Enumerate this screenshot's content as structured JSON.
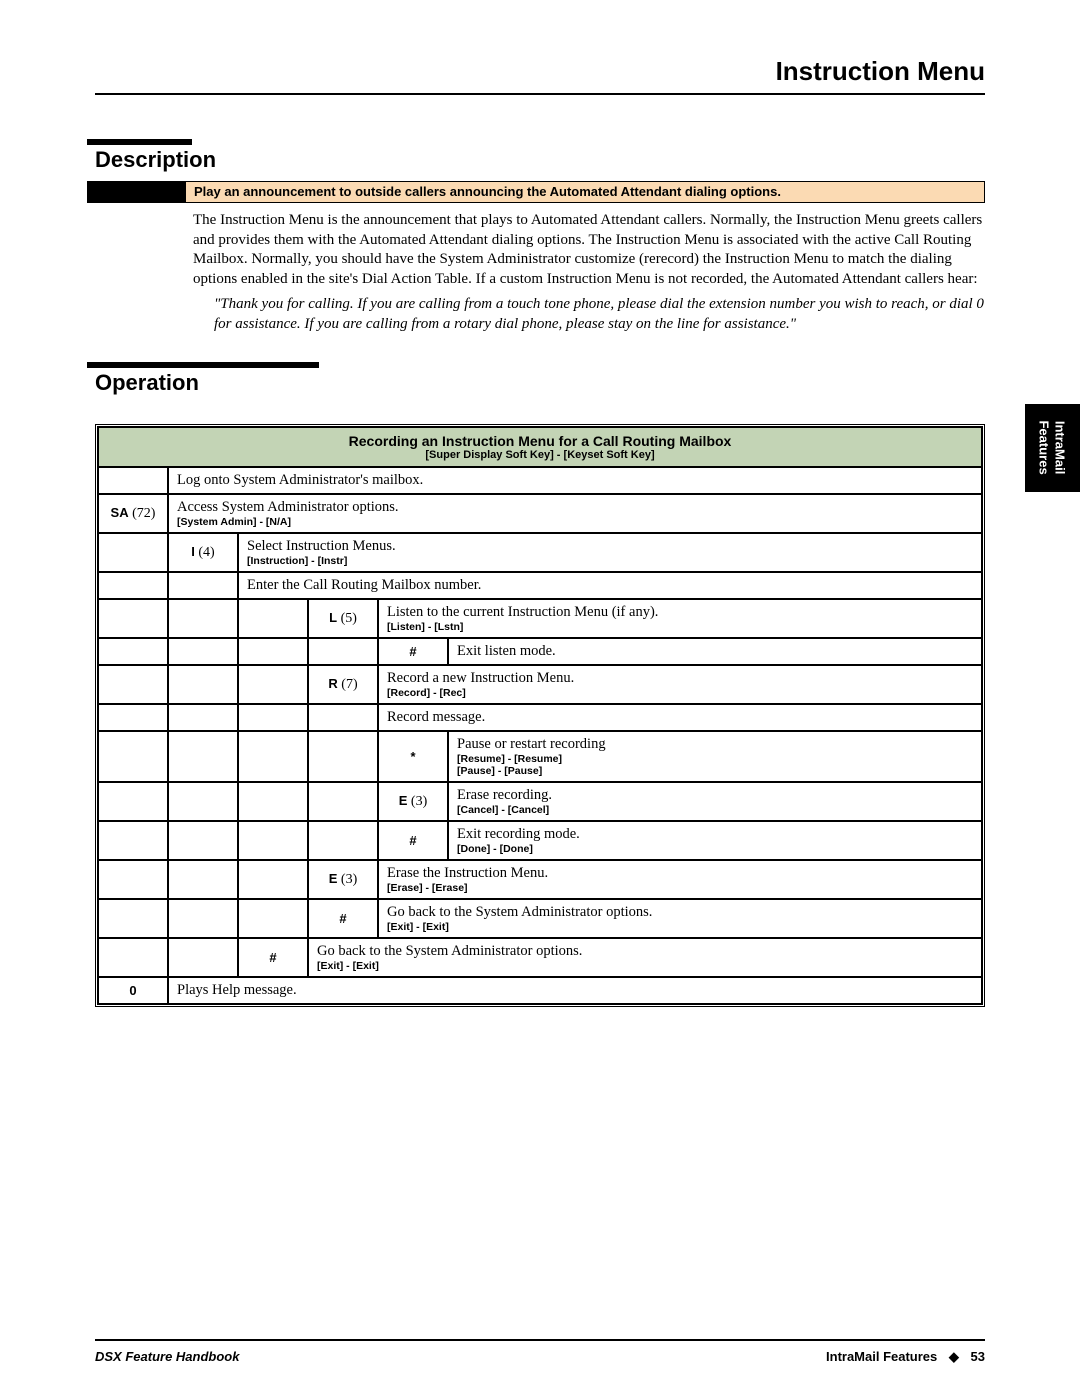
{
  "page": {
    "title": "Instruction Menu",
    "footer_left": "DSX Feature Handbook",
    "footer_section": "IntraMail Features",
    "footer_diamond": "◆",
    "footer_page": "53",
    "sidetab_line1": "IntraMail",
    "sidetab_line2": "Features"
  },
  "colors": {
    "summary_bg": "#fbdab3",
    "table_header_bg": "#c3d4b5",
    "rule": "#000000"
  },
  "description": {
    "heading": "Description",
    "summary": "Play an announcement to outside callers announcing the Automated Attendant dialing options.",
    "body": "The Instruction Menu is the announcement that plays to Automated Attendant callers. Normally, the Instruction Menu greets callers and provides them with the Automated Attendant dialing options. The Instruction Menu is associated with the active Call Routing Mailbox. Normally, you should have the System Administrator customize (rerecord) the Instruction Menu to match the dialing options enabled in the site's Dial Action Table. If a custom Instruction Menu is not recorded, the Automated Attendant callers hear:",
    "quote": "\"Thank you for calling. If you are calling from a touch tone phone, please dial the extension number you wish to reach, or dial 0 for assistance. If you are calling from a rotary dial phone, please stay on the line for assistance.\""
  },
  "operation": {
    "heading": "Operation",
    "table": {
      "title": "Recording an Instruction Menu for a Call Routing Mailbox",
      "subtitle": "[Super Display Soft Key] - [Keyset Soft Key]",
      "rows": [
        {
          "c": [
            ""
          ],
          "desc": "Log onto System Administrator's mailbox.",
          "span": 6
        },
        {
          "c": [
            "SA (72)"
          ],
          "desc": "Access System Administrator options.",
          "soft": "[System Admin] - [N/A]",
          "span": 5
        },
        {
          "c": [
            "",
            "I (4)"
          ],
          "desc": "Select Instruction Menus.",
          "soft": "[Instruction] - [Instr]",
          "span": 4
        },
        {
          "c": [
            "",
            ""
          ],
          "desc": "Enter the Call Routing Mailbox number.",
          "span": 4
        },
        {
          "c": [
            "",
            "",
            "",
            "L (5)"
          ],
          "desc": "Listen to the current Instruction Menu (if any).",
          "soft": "[Listen] - [Lstn]",
          "span": 2
        },
        {
          "c": [
            "",
            "",
            "",
            "",
            "#"
          ],
          "desc": "Exit listen mode.",
          "span": 1
        },
        {
          "c": [
            "",
            "",
            "",
            "R (7)"
          ],
          "desc": "Record a new Instruction Menu.",
          "soft": "[Record] - [Rec]",
          "span": 2
        },
        {
          "c": [
            "",
            "",
            "",
            ""
          ],
          "desc": "Record message.",
          "span": 2
        },
        {
          "c": [
            "",
            "",
            "",
            "",
            "*"
          ],
          "desc": "Pause or restart recording",
          "soft": "[Resume] - [Resume]\n[Pause] - [Pause]",
          "span": 1
        },
        {
          "c": [
            "",
            "",
            "",
            "",
            "E (3)"
          ],
          "desc": "Erase recording.",
          "soft": "[Cancel] - [Cancel]",
          "span": 1
        },
        {
          "c": [
            "",
            "",
            "",
            "",
            "#"
          ],
          "desc": "Exit recording mode.",
          "soft": "[Done] - [Done]",
          "span": 1
        },
        {
          "c": [
            "",
            "",
            "",
            "E (3)"
          ],
          "desc": "Erase the Instruction Menu.",
          "soft": "[Erase] - [Erase]",
          "span": 2
        },
        {
          "c": [
            "",
            "",
            "",
            "#"
          ],
          "desc": "Go back to the System Administrator options.",
          "soft": "[Exit] - [Exit]",
          "span": 2
        },
        {
          "c": [
            "",
            "",
            "#"
          ],
          "desc": "Go back to the System Administrator options.",
          "soft": "[Exit] - [Exit]",
          "span": 3
        },
        {
          "c": [
            "0"
          ],
          "desc": "Plays Help message.",
          "span": 5
        }
      ]
    }
  }
}
